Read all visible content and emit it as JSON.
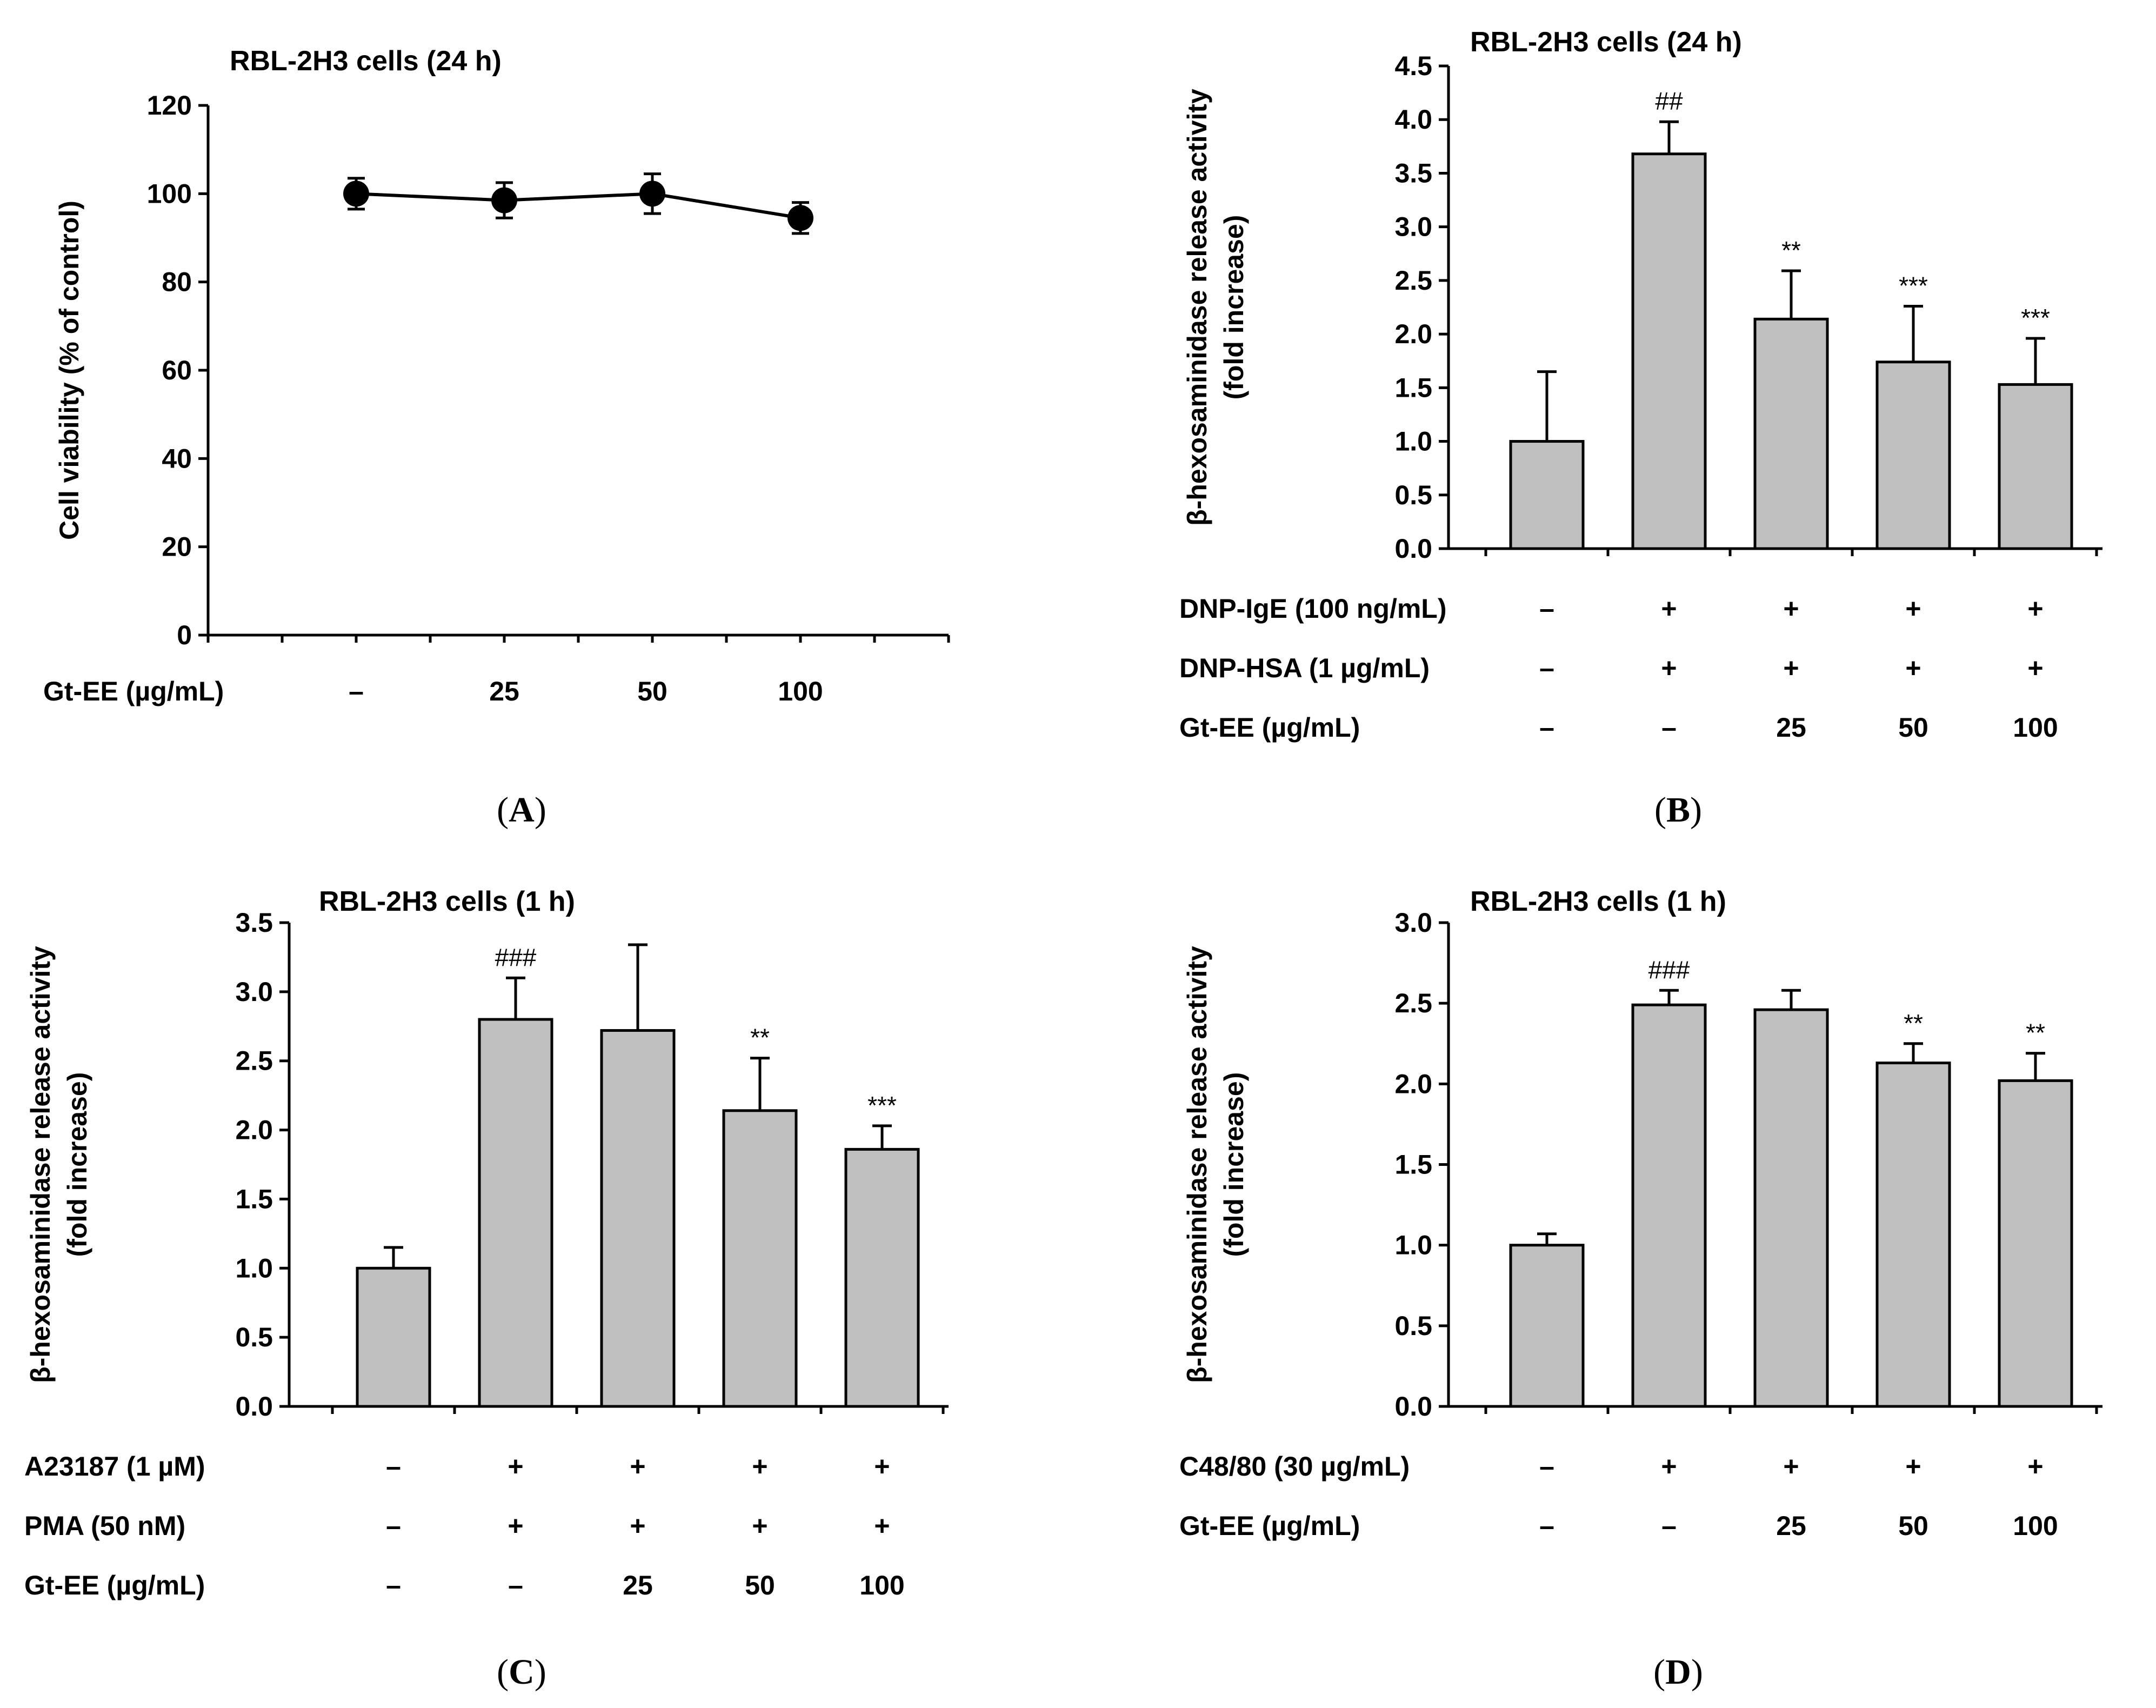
{
  "chart_data": [
    {
      "panel": "A",
      "type": "line",
      "title": "RBL-2H3 cells (24 h)",
      "ylabel": "Cell viability (% of control)",
      "ylim": [
        0,
        120
      ],
      "yticks": [
        0,
        20,
        40,
        60,
        80,
        100,
        120
      ],
      "xlim": [
        0,
        5
      ],
      "conditions": [
        {
          "label": "Gt-EE (µg/mL)",
          "values": [
            "–",
            "25",
            "50",
            "100"
          ]
        }
      ],
      "x": [
        1,
        2,
        3,
        4
      ],
      "values": [
        100,
        98.5,
        100,
        94.5
      ],
      "errors": [
        3.5,
        4,
        4.5,
        3.5
      ]
    },
    {
      "panel": "B",
      "type": "bar",
      "title": "RBL-2H3 cells (24 h)",
      "ylabel": "β-hexosaminidase release activity",
      "ylabel2": "(fold increase)",
      "ylim": [
        0,
        4.5
      ],
      "yticks": [
        "0.0",
        "0.5",
        "1.0",
        "1.5",
        "2.0",
        "2.5",
        "3.0",
        "3.5",
        "4.0",
        "4.5"
      ],
      "values": [
        1.0,
        3.68,
        2.14,
        1.74,
        1.53
      ],
      "errors": [
        0.65,
        0.3,
        0.45,
        0.52,
        0.43
      ],
      "significance": [
        "",
        "##",
        "**",
        "***",
        "***"
      ],
      "conditions": [
        {
          "label": "DNP-IgE (100 ng/mL)",
          "values": [
            "–",
            "+",
            "+",
            "+",
            "+"
          ]
        },
        {
          "label": "DNP-HSA (1 µg/mL)",
          "values": [
            "–",
            "+",
            "+",
            "+",
            "+"
          ]
        },
        {
          "label": "Gt-EE (µg/mL)",
          "values": [
            "–",
            "–",
            "25",
            "50",
            "100"
          ]
        }
      ]
    },
    {
      "panel": "C",
      "type": "bar",
      "title": "RBL-2H3 cells (1 h)",
      "ylabel": "β-hexosaminidase release activity",
      "ylabel2": "(fold increase)",
      "ylim": [
        0,
        3.5
      ],
      "yticks": [
        "0.0",
        "0.5",
        "1.0",
        "1.5",
        "2.0",
        "2.5",
        "3.0",
        "3.5"
      ],
      "values": [
        1.0,
        2.8,
        2.72,
        2.14,
        1.86
      ],
      "errors": [
        0.15,
        0.3,
        0.62,
        0.38,
        0.17
      ],
      "significance": [
        "",
        "###",
        "",
        "**",
        "***"
      ],
      "conditions": [
        {
          "label": "A23187 (1 µM)",
          "values": [
            "–",
            "+",
            "+",
            "+",
            "+"
          ]
        },
        {
          "label": "PMA (50 nM)",
          "values": [
            "–",
            "+",
            "+",
            "+",
            "+"
          ]
        },
        {
          "label": "Gt-EE (µg/mL)",
          "values": [
            "–",
            "–",
            "25",
            "50",
            "100"
          ]
        }
      ]
    },
    {
      "panel": "D",
      "type": "bar",
      "title": "RBL-2H3 cells (1 h)",
      "ylabel": "β-hexosaminidase release activity",
      "ylabel2": "(fold increase)",
      "ylim": [
        0,
        3.0
      ],
      "yticks": [
        "0.0",
        "0.5",
        "1.0",
        "1.5",
        "2.0",
        "2.5",
        "3.0"
      ],
      "values": [
        1.0,
        2.49,
        2.46,
        2.13,
        2.02
      ],
      "errors": [
        0.07,
        0.09,
        0.12,
        0.12,
        0.17
      ],
      "significance": [
        "",
        "###",
        "",
        "**",
        "**"
      ],
      "conditions": [
        {
          "label": "C48/80 (30 µg/mL)",
          "values": [
            "–",
            "+",
            "+",
            "+",
            "+"
          ]
        },
        {
          "label": "Gt-EE (µg/mL)",
          "values": [
            "–",
            "–",
            "25",
            "50",
            "100"
          ]
        }
      ]
    }
  ],
  "panel_labels": [
    "A",
    "B",
    "C",
    "D"
  ]
}
